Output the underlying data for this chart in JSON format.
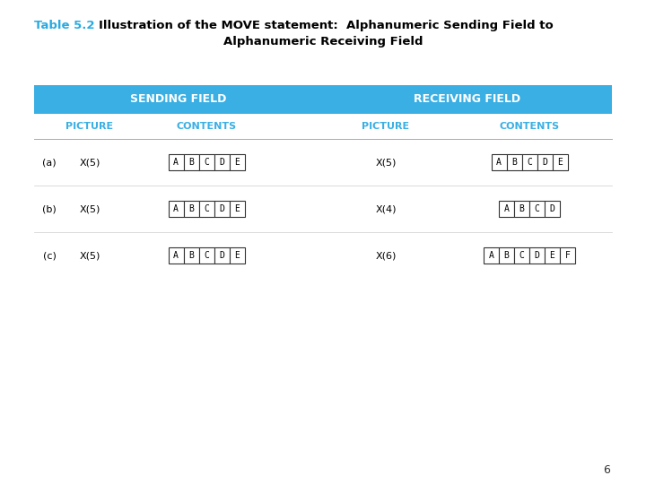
{
  "title_prefix": "Table 5.2",
  "title_line1": "Illustration of the MOVE statement:  Alphanumeric Sending Field to",
  "title_line2": "Alphanumeric Receiving Field",
  "title_prefix_color": "#29ABE2",
  "title_main_color": "#000000",
  "header1_text": "SENDING FIELD",
  "header2_text": "RECEIVING FIELD",
  "header_bg_color": "#3AAFE4",
  "header_text_color": "#FFFFFF",
  "subheader_text_color": "#3AAFE4",
  "subheader_picture": "PICTURE",
  "subheader_contents": "CONTENTS",
  "rows": [
    {
      "label": "(a)",
      "send_pic": "X(5)",
      "send_content": [
        "A",
        "B",
        "C",
        "D",
        "E"
      ],
      "recv_pic": "X(5)",
      "recv_content": [
        "A",
        "B",
        "C",
        "D",
        "E"
      ]
    },
    {
      "label": "(b)",
      "send_pic": "X(5)",
      "send_content": [
        "A",
        "B",
        "C",
        "D",
        "E"
      ],
      "recv_pic": "X(4)",
      "recv_content": [
        "A",
        "B",
        "C",
        "D"
      ]
    },
    {
      "label": "(c)",
      "send_pic": "X(5)",
      "send_content": [
        "A",
        "B",
        "C",
        "D",
        "E"
      ],
      "recv_pic": "X(6)",
      "recv_content": [
        "A",
        "B",
        "C",
        "D",
        "E",
        "F"
      ]
    }
  ],
  "page_number": "6",
  "bg_color": "#FFFFFF",
  "cell_border_color": "#333333",
  "cell_text_color": "#000000"
}
